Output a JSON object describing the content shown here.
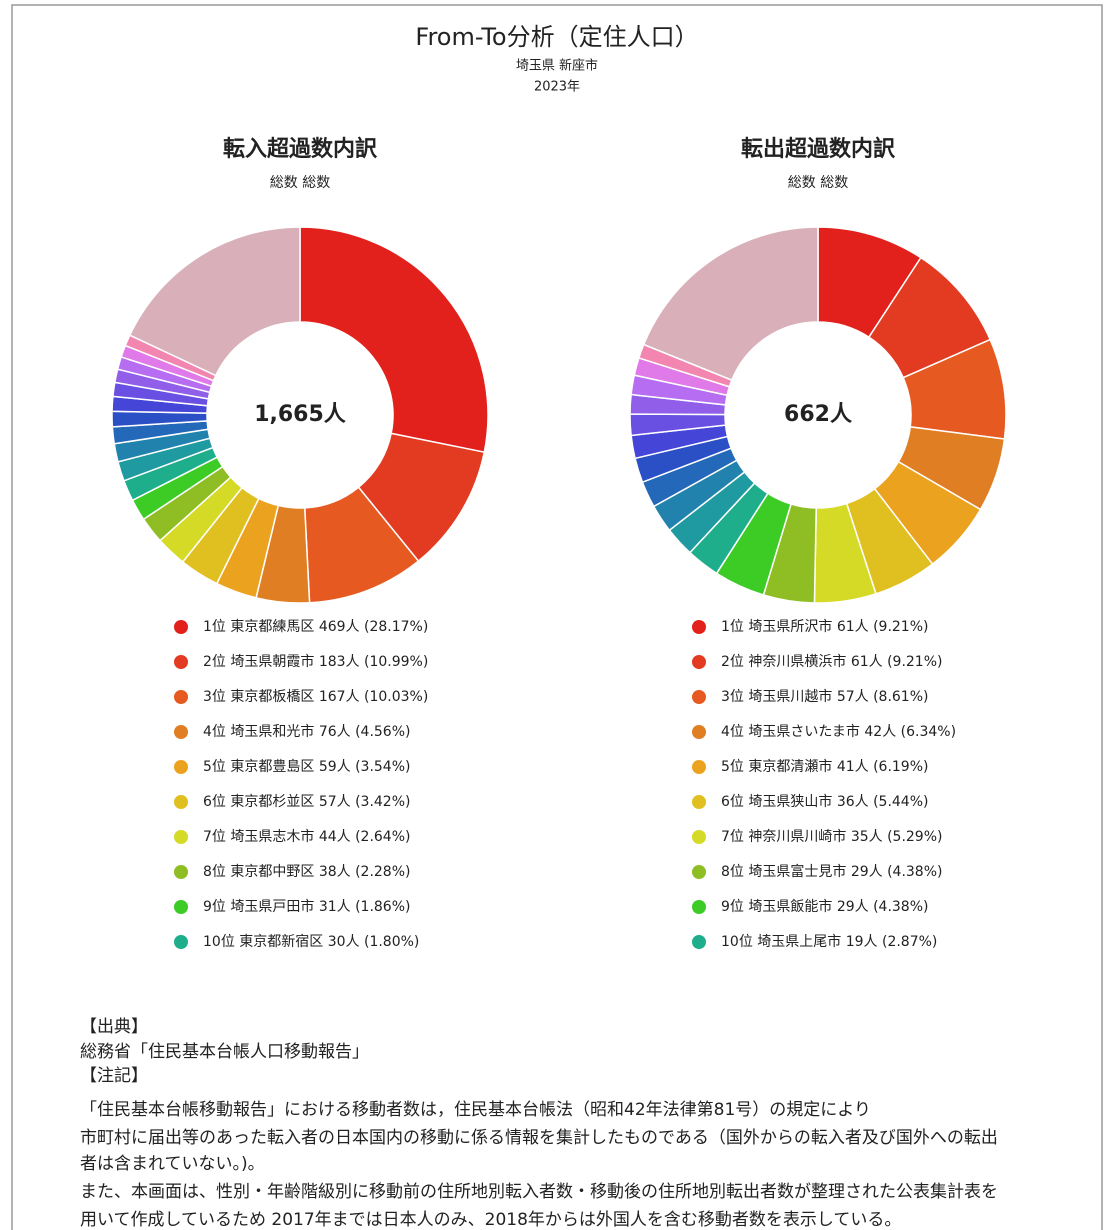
{
  "title": "From-To分析（定住人口）",
  "subtitle": "埼玉県 新座市",
  "year": "2023年",
  "chart_data": [
    {
      "type": "pie",
      "title": "転入超過数内訳",
      "subtitle": "総数 総数",
      "center_label": "1,665人",
      "categories": [
        "1位 東京都練馬区",
        "2位 埼玉県朝霞市",
        "3位 東京都板橋区",
        "4位 埼玉県和光市",
        "5位 東京都豊島区",
        "6位 東京都杉並区",
        "7位 埼玉県志木市",
        "8位 東京都中野区",
        "9位 埼玉県戸田市",
        "10位 東京都新宿区",
        null,
        null,
        null,
        null,
        null,
        null,
        null,
        null,
        null,
        null,
        null
      ],
      "values": [
        469,
        183,
        167,
        76,
        59,
        57,
        44,
        38,
        31,
        30,
        28,
        26,
        24,
        22,
        21,
        20,
        19,
        18,
        17,
        16,
        300
      ],
      "value_labels": [
        "469人 (28.17%)",
        "183人 (10.99%)",
        "167人 (10.03%)",
        "76人 (4.56%)",
        "59人 (3.54%)",
        "57人 (3.42%)",
        "44人 (2.64%)",
        "38人 (2.28%)",
        "31人 (1.86%)",
        "30人 (1.80%)",
        null,
        null,
        null,
        null,
        null,
        null,
        null,
        null,
        null,
        null,
        null
      ],
      "colors": [
        "#e2201c",
        "#e33b22",
        "#e65a22",
        "#e07e24",
        "#eba21f",
        "#e0bf20",
        "#d5da27",
        "#8fbd24",
        "#3ccc25",
        "#1fae8c",
        "#1f9aa0",
        "#2183ad",
        "#2468b9",
        "#2b50c6",
        "#4545d8",
        "#6a50e2",
        "#915ee9",
        "#b66df1",
        "#e07ae9",
        "#f286b0",
        "#d9b0ba"
      ]
    },
    {
      "type": "pie",
      "title": "転出超過数内訳",
      "subtitle": "総数 総数",
      "center_label": "662人",
      "categories": [
        "1位 埼玉県所沢市",
        "2位 神奈川県横浜市",
        "3位 埼玉県川越市",
        "4位 埼玉県さいたま市",
        "5位 東京都清瀬市",
        "6位 埼玉県狭山市",
        "7位 神奈川県川崎市",
        "8位 埼玉県富士見市",
        "9位 埼玉県飯能市",
        "10位 埼玉県上尾市",
        null,
        null,
        null,
        null,
        null,
        null,
        null,
        null,
        null,
        null,
        null
      ],
      "values": [
        61,
        61,
        57,
        42,
        41,
        36,
        35,
        29,
        29,
        19,
        17,
        16,
        15,
        14,
        13,
        12,
        11,
        11,
        10,
        8,
        125
      ],
      "value_labels": [
        "61人 (9.21%)",
        "61人 (9.21%)",
        "57人 (8.61%)",
        "42人 (6.34%)",
        "41人 (6.19%)",
        "36人 (5.44%)",
        "35人 (5.29%)",
        "29人 (4.38%)",
        "29人 (4.38%)",
        "19人 (2.87%)",
        null,
        null,
        null,
        null,
        null,
        null,
        null,
        null,
        null,
        null,
        null
      ],
      "colors": [
        "#e2201c",
        "#e33b22",
        "#e65a22",
        "#e07e24",
        "#eba21f",
        "#e0bf20",
        "#d5da27",
        "#8fbd24",
        "#3ccc25",
        "#1fae8c",
        "#1f9aa0",
        "#2183ad",
        "#2468b9",
        "#2b50c6",
        "#4545d8",
        "#6a50e2",
        "#915ee9",
        "#b66df1",
        "#e07ae9",
        "#f286b0",
        "#d9b0ba"
      ]
    }
  ],
  "notes": [
    "【出典】",
    "総務省「住民基本台帳人口移動報告」",
    "【注記】",
    "「住民基本台帳移動報告」における移動者数は，住民基本台帳法（昭和42年法律第81号）の規定により",
    "市町村に届出等のあった転入者の日本国内の移動に係る情報を集計したものである（国外からの転入者及び国外への転出",
    "者は含まれていない。)。",
    "また、本画面は、性別・年齢階級別に移動前の住所地別転入者数・移動後の住所地別転出者数が整理された公表集計表を",
    "用いて作成しているため 2017年までは日本人のみ、2018年からは外国人を含む移動者数を表示している。"
  ]
}
